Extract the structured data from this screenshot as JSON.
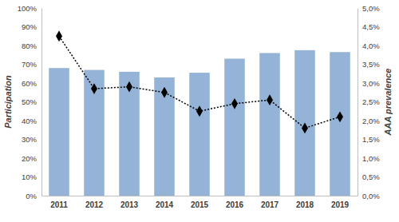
{
  "chart_data": {
    "type": "bar",
    "categories": [
      "2011",
      "2012",
      "2013",
      "2014",
      "2015",
      "2016",
      "2017",
      "2018",
      "2019"
    ],
    "series": [
      {
        "type": "bar",
        "color": "#95b3d7",
        "values": [
          68,
          67,
          66,
          63,
          65.5,
          73,
          76,
          77.5,
          76.5
        ]
      },
      {
        "type": "line",
        "axis": "y2",
        "color": "#000000",
        "marker": "diamond",
        "line_style": "dotted",
        "values": [
          4.25,
          2.85,
          2.9,
          2.75,
          2.25,
          2.45,
          2.55,
          1.8,
          2.1
        ]
      }
    ],
    "ylabel": "Participation",
    "y2label": "AAA prevalence",
    "ylim": [
      0,
      100
    ],
    "yticks": [
      {
        "value": 0,
        "label": "0%"
      },
      {
        "value": 10,
        "label": "10%"
      },
      {
        "value": 20,
        "label": "20%"
      },
      {
        "value": 30,
        "label": "30%"
      },
      {
        "value": 40,
        "label": "40%"
      },
      {
        "value": 50,
        "label": "50%"
      },
      {
        "value": 60,
        "label": "60%"
      },
      {
        "value": 70,
        "label": "70%"
      },
      {
        "value": 80,
        "label": "80%"
      },
      {
        "value": 90,
        "label": "90%"
      },
      {
        "value": 100,
        "label": "100%"
      }
    ],
    "y2lim": [
      0,
      5
    ],
    "y2ticks": [
      {
        "value": 0,
        "label": "0,0%"
      },
      {
        "value": 0.5,
        "label": "0,5%"
      },
      {
        "value": 1,
        "label": "1,0%"
      },
      {
        "value": 1.5,
        "label": "1,5%"
      },
      {
        "value": 2,
        "label": "2,0%"
      },
      {
        "value": 2.5,
        "label": "2,5%"
      },
      {
        "value": 3,
        "label": "3,0%"
      },
      {
        "value": 3.5,
        "label": "3,5%"
      },
      {
        "value": 4,
        "label": "4,0%"
      },
      {
        "value": 4.5,
        "label": "4,5%"
      },
      {
        "value": 5,
        "label": "5,0%"
      }
    ],
    "grid": false
  }
}
